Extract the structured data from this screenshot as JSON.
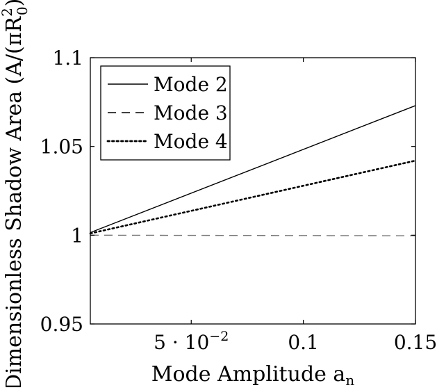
{
  "chart_data": {
    "type": "line",
    "title": "",
    "xlabel": "Mode Amplitude a",
    "xlabel_subscript": "n",
    "ylabel": "Dimensionless Shadow Area (A/(πR",
    "ylabel_subscript": "0",
    "ylabel_superscript": "2",
    "ylabel_suffix": "))",
    "xlim": [
      0.005,
      0.15
    ],
    "ylim": [
      0.95,
      1.1
    ],
    "x_ticks": [
      {
        "value": 0.05,
        "label_base": "5 · 10",
        "label_exp": "−2"
      },
      {
        "value": 0.1,
        "label_base": "0.1",
        "label_exp": ""
      },
      {
        "value": 0.15,
        "label_base": "0.15",
        "label_exp": ""
      }
    ],
    "y_ticks": [
      {
        "value": 0.95,
        "label": "0.95"
      },
      {
        "value": 1.0,
        "label": "1"
      },
      {
        "value": 1.05,
        "label": "1.05"
      },
      {
        "value": 1.1,
        "label": "1.1"
      }
    ],
    "grid": false,
    "legend_position": "top-left",
    "series": [
      {
        "name": "Mode 2",
        "style": "solid",
        "color": "#000000",
        "x": [
          0.005,
          0.15
        ],
        "y": [
          1.0015,
          1.073
        ]
      },
      {
        "name": "Mode 3",
        "style": "dashed",
        "color": "#000000",
        "x": [
          0.005,
          0.15
        ],
        "y": [
          1.0,
          0.9997
        ]
      },
      {
        "name": "Mode 4",
        "style": "dotted",
        "color": "#000000",
        "x": [
          0.005,
          0.15
        ],
        "y": [
          1.001,
          1.042
        ]
      }
    ]
  }
}
